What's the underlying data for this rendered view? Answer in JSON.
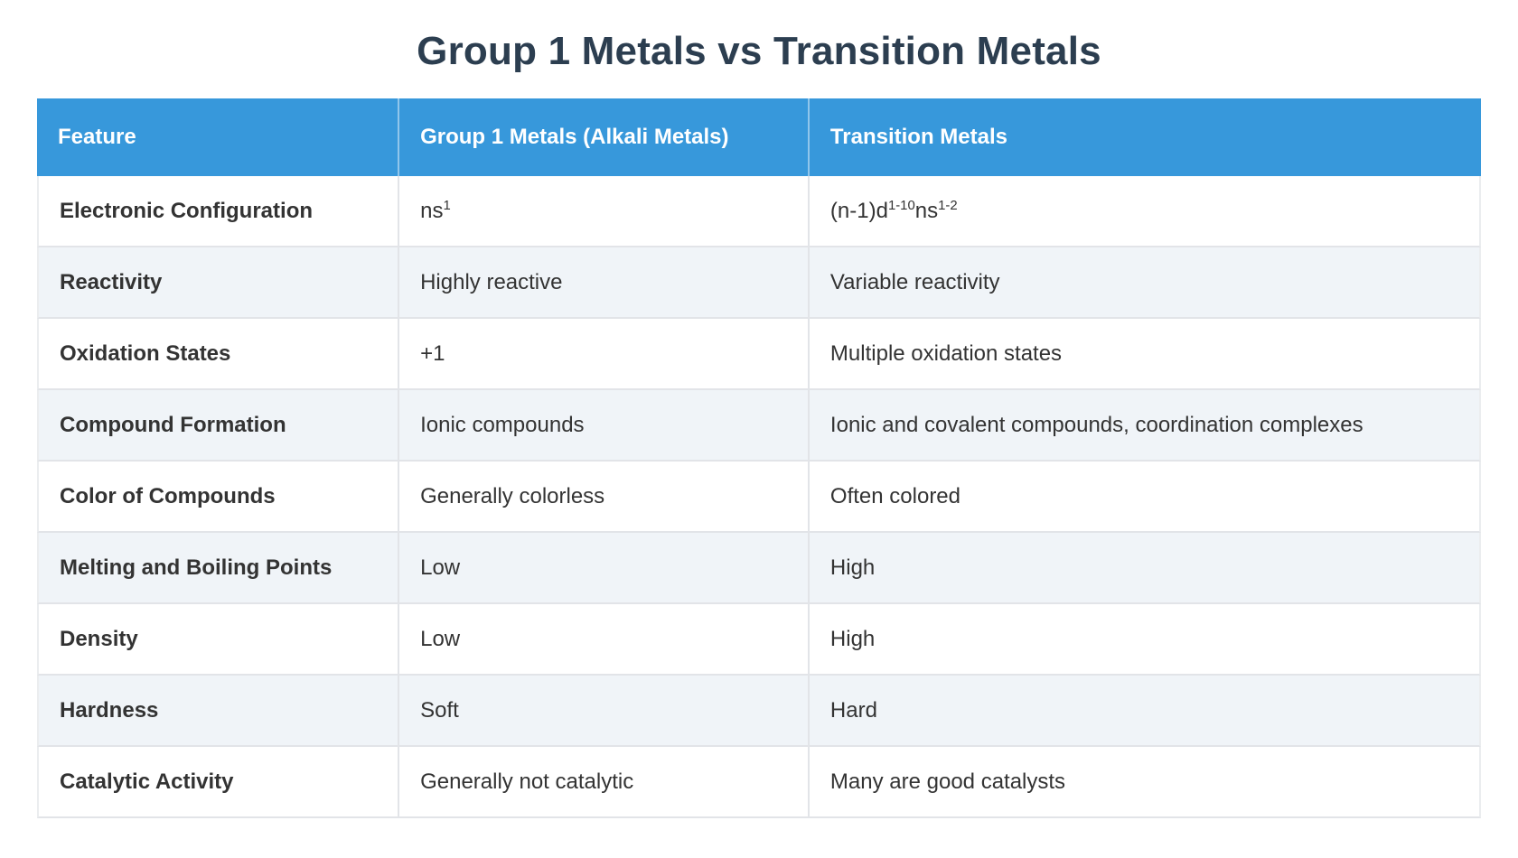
{
  "title": "Group 1 Metals vs Transition Metals",
  "colors": {
    "header_bg": "#3798db",
    "header_text": "#ffffff",
    "stripe_bg": "#f0f4f8",
    "row_bg": "#ffffff",
    "divider": "#e2e4e8",
    "title_text": "#2c3e50",
    "body_text": "#333333"
  },
  "table": {
    "headers": [
      "Feature",
      "Group 1 Metals (Alkali Metals)",
      "Transition Metals"
    ],
    "rows": [
      {
        "feature": "Electronic Configuration",
        "group1": [
          {
            "t": "ns"
          },
          {
            "t": "1",
            "sup": true
          }
        ],
        "transition": [
          {
            "t": "(n-1)d"
          },
          {
            "t": "1-10",
            "sup": true
          },
          {
            "t": "ns"
          },
          {
            "t": "1-2",
            "sup": true
          }
        ]
      },
      {
        "feature": "Reactivity",
        "group1": [
          {
            "t": "Highly reactive"
          }
        ],
        "transition": [
          {
            "t": "Variable reactivity"
          }
        ]
      },
      {
        "feature": "Oxidation States",
        "group1": [
          {
            "t": "+1"
          }
        ],
        "transition": [
          {
            "t": "Multiple oxidation states"
          }
        ]
      },
      {
        "feature": "Compound Formation",
        "group1": [
          {
            "t": "Ionic compounds"
          }
        ],
        "transition": [
          {
            "t": "Ionic and covalent compounds, coordination complexes"
          }
        ]
      },
      {
        "feature": "Color of Compounds",
        "group1": [
          {
            "t": "Generally colorless"
          }
        ],
        "transition": [
          {
            "t": "Often colored"
          }
        ]
      },
      {
        "feature": "Melting and Boiling Points",
        "group1": [
          {
            "t": "Low"
          }
        ],
        "transition": [
          {
            "t": "High"
          }
        ]
      },
      {
        "feature": "Density",
        "group1": [
          {
            "t": "Low"
          }
        ],
        "transition": [
          {
            "t": "High"
          }
        ]
      },
      {
        "feature": "Hardness",
        "group1": [
          {
            "t": "Soft"
          }
        ],
        "transition": [
          {
            "t": "Hard"
          }
        ]
      },
      {
        "feature": "Catalytic Activity",
        "group1": [
          {
            "t": "Generally not catalytic"
          }
        ],
        "transition": [
          {
            "t": "Many are good catalysts"
          }
        ]
      }
    ]
  }
}
